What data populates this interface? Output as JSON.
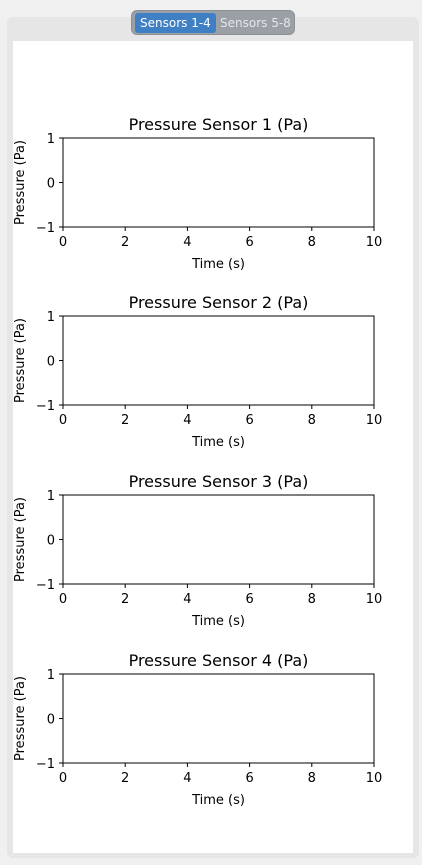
{
  "tabs": [
    {
      "label": "Sensors 1-4",
      "active": true
    },
    {
      "label": "Sensors 5-8",
      "active": false
    }
  ],
  "chart_data": [
    {
      "type": "line",
      "title": "Pressure Sensor 1 (Pa)",
      "xlabel": "Time (s)",
      "ylabel": "Pressure (Pa)",
      "xlim": [
        0,
        10
      ],
      "ylim": [
        -1,
        1
      ],
      "xticks": [
        0,
        2,
        4,
        6,
        8,
        10
      ],
      "yticks": [
        -1,
        0,
        1
      ],
      "xtick_labels": [
        "0",
        "2",
        "4",
        "6",
        "8",
        "10"
      ],
      "ytick_labels": [
        "−1",
        "0",
        "1"
      ],
      "series": []
    },
    {
      "type": "line",
      "title": "Pressure Sensor 2 (Pa)",
      "xlabel": "Time (s)",
      "ylabel": "Pressure (Pa)",
      "xlim": [
        0,
        10
      ],
      "ylim": [
        -1,
        1
      ],
      "xticks": [
        0,
        2,
        4,
        6,
        8,
        10
      ],
      "yticks": [
        -1,
        0,
        1
      ],
      "xtick_labels": [
        "0",
        "2",
        "4",
        "6",
        "8",
        "10"
      ],
      "ytick_labels": [
        "−1",
        "0",
        "1"
      ],
      "series": []
    },
    {
      "type": "line",
      "title": "Pressure Sensor 3 (Pa)",
      "xlabel": "Time (s)",
      "ylabel": "Pressure (Pa)",
      "xlim": [
        0,
        10
      ],
      "ylim": [
        -1,
        1
      ],
      "xticks": [
        0,
        2,
        4,
        6,
        8,
        10
      ],
      "yticks": [
        -1,
        0,
        1
      ],
      "xtick_labels": [
        "0",
        "2",
        "4",
        "6",
        "8",
        "10"
      ],
      "ytick_labels": [
        "−1",
        "0",
        "1"
      ],
      "series": []
    },
    {
      "type": "line",
      "title": "Pressure Sensor 4 (Pa)",
      "xlabel": "Time (s)",
      "ylabel": "Pressure (Pa)",
      "xlim": [
        0,
        10
      ],
      "ylim": [
        -1,
        1
      ],
      "xticks": [
        0,
        2,
        4,
        6,
        8,
        10
      ],
      "yticks": [
        -1,
        0,
        1
      ],
      "xtick_labels": [
        "0",
        "2",
        "4",
        "6",
        "8",
        "10"
      ],
      "ytick_labels": [
        "−1",
        "0",
        "1"
      ],
      "series": []
    }
  ]
}
